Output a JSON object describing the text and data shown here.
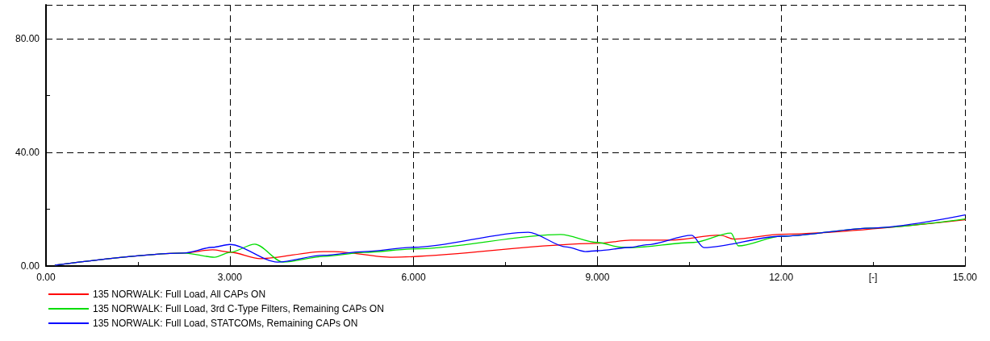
{
  "chart_data": {
    "type": "line",
    "xlabel": "[-]",
    "xlim": [
      0,
      15
    ],
    "ylim": [
      0,
      92
    ],
    "xticks": [
      {
        "value": 0,
        "label": "0.00"
      },
      {
        "value": 1.5,
        "label": null
      },
      {
        "value": 3,
        "label": "3.000"
      },
      {
        "value": 4.5,
        "label": null
      },
      {
        "value": 6,
        "label": "6.000"
      },
      {
        "value": 7.5,
        "label": null
      },
      {
        "value": 9,
        "label": "9.000"
      },
      {
        "value": 10.5,
        "label": null
      },
      {
        "value": 12,
        "label": "12.00"
      },
      {
        "value": 13.5,
        "label": null
      },
      {
        "value": 15,
        "label": "15.00"
      }
    ],
    "yticks": [
      {
        "value": 0,
        "label": "0.00"
      },
      {
        "value": 20,
        "label": null
      },
      {
        "value": 40,
        "label": "40.00"
      },
      {
        "value": 60,
        "label": null
      },
      {
        "value": 80,
        "label": "80.00"
      }
    ],
    "grid": true,
    "legend": "bottom left",
    "marker": "none",
    "line_style": "solid",
    "series": [
      {
        "name": "135 NORWALK: Full Load, All CAPs ON",
        "color": "#ff0000",
        "x": [
          0.15,
          2.25,
          2.72,
          3.0,
          3.5,
          4.53,
          4.7,
          5.65,
          9.0,
          9.55,
          10.17,
          11.0,
          11.23,
          12.0,
          15.0
        ],
        "values": [
          0.3,
          4.6,
          5.7,
          4.9,
          2.6,
          5.1,
          5.1,
          3.1,
          8.0,
          9.1,
          9.1,
          10.9,
          9.5,
          11.2,
          16.3
        ]
      },
      {
        "name": "135 NORWALK: Full Load, 3rd C-Type Filters, Remaining CAPs ON",
        "color": "#00dd00",
        "x": [
          0.15,
          2.25,
          2.75,
          3.0,
          3.41,
          3.87,
          4.53,
          5.19,
          6.0,
          8.4,
          9.0,
          9.4,
          9.55,
          10.57,
          11.18,
          11.3,
          12.0,
          13.5,
          15.0
        ],
        "values": [
          0.3,
          4.6,
          3.1,
          4.8,
          7.7,
          1.4,
          3.4,
          4.8,
          6.0,
          11.1,
          8.3,
          6.6,
          6.5,
          8.3,
          11.6,
          7.1,
          10.5,
          13.4,
          16.6
        ]
      },
      {
        "name": "135 NORWALK: Full Load, STATCOMs, Remaining CAPs ON",
        "color": "#0000ff",
        "x": [
          0.15,
          2.25,
          2.72,
          3.0,
          3.78,
          4.53,
          5.19,
          6.0,
          7.87,
          8.5,
          8.8,
          9.0,
          9.55,
          9.8,
          10.54,
          10.74,
          12.0,
          13.5,
          15.0
        ],
        "values": [
          0.3,
          4.6,
          6.6,
          7.6,
          1.4,
          3.8,
          5.1,
          6.6,
          11.9,
          6.7,
          5.1,
          5.4,
          6.6,
          7.5,
          10.8,
          6.5,
          10.5,
          13.4,
          18.0
        ]
      }
    ]
  }
}
